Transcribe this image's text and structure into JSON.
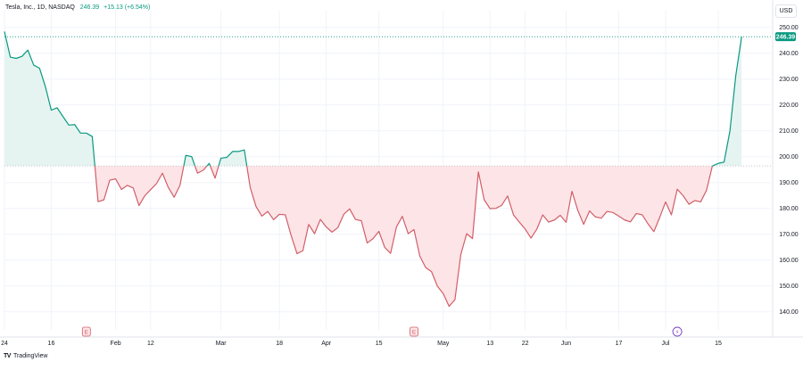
{
  "header": {
    "symbol": "Tesla, Inc., 1D, NASDAQ",
    "last_price": "246.39",
    "change": "+15.13 (+6.54%)"
  },
  "currency_button": "USD",
  "branding": {
    "logo": "TV",
    "name": "TradingView"
  },
  "colors": {
    "up": "#089981",
    "down": "#d15e69",
    "up_fill": "#e6f4f1",
    "down_fill": "#fde4e6",
    "grid": "#f0f3fa",
    "axis_text": "#131722"
  },
  "chart_data": {
    "type": "area",
    "title": "Tesla, Inc., 1D, NASDAQ",
    "baseline": 196.4,
    "last_value": 246.39,
    "last_value_label": "246.39",
    "ylim": [
      133,
      253
    ],
    "y_ticks": [
      140,
      150,
      160,
      170,
      180,
      190,
      200,
      210,
      220,
      230,
      240,
      250
    ],
    "y_tick_labels": [
      "140.00",
      "150.00",
      "160.00",
      "170.00",
      "180.00",
      "190.00",
      "200.00",
      "210.00",
      "220.00",
      "230.00",
      "240.00",
      "250.00"
    ],
    "x_range": [
      0,
      131
    ],
    "x_ticks": [
      {
        "i": 0,
        "label": "24"
      },
      {
        "i": 8,
        "label": "16"
      },
      {
        "i": 19,
        "label": "Feb"
      },
      {
        "i": 25,
        "label": "12"
      },
      {
        "i": 37,
        "label": "Mar"
      },
      {
        "i": 47,
        "label": "18"
      },
      {
        "i": 55,
        "label": "Apr"
      },
      {
        "i": 64,
        "label": "15"
      },
      {
        "i": 75,
        "label": "May"
      },
      {
        "i": 83,
        "label": "13"
      },
      {
        "i": 89,
        "label": "22"
      },
      {
        "i": 96,
        "label": "Jun"
      },
      {
        "i": 105,
        "label": "17"
      },
      {
        "i": 113,
        "label": "Jul"
      },
      {
        "i": 122,
        "label": "15"
      }
    ],
    "events": [
      {
        "i": 14,
        "label": "E"
      },
      {
        "i": 70,
        "label": "E"
      },
      {
        "i": 115,
        "label": "⚡"
      }
    ],
    "values": [
      248.4,
      238.5,
      238.0,
      238.8,
      241.2,
      235.4,
      234.2,
      227.0,
      218.0,
      218.9,
      215.5,
      212.2,
      212.4,
      209.1,
      209.1,
      207.8,
      182.6,
      183.3,
      190.9,
      191.4,
      187.3,
      188.9,
      187.9,
      181.1,
      184.9,
      187.3,
      189.6,
      193.6,
      188.1,
      184.3,
      188.9,
      200.5,
      200.0,
      193.6,
      194.8,
      197.4,
      191.7,
      199.4,
      199.7,
      202.0,
      202.0,
      202.6,
      188.1,
      180.7,
      177.0,
      178.8,
      175.6,
      177.7,
      177.5,
      169.5,
      162.5,
      163.6,
      173.8,
      170.2,
      175.7,
      172.8,
      170.8,
      172.6,
      177.7,
      179.8,
      175.7,
      175.2,
      166.6,
      168.3,
      171.1,
      164.9,
      162.6,
      172.8,
      176.9,
      170.2,
      171.8,
      161.5,
      157.1,
      155.5,
      149.9,
      147.0,
      142.1,
      144.7,
      162.1,
      170.2,
      168.3,
      194.1,
      183.3,
      179.9,
      180.0,
      181.2,
      184.8,
      177.5,
      174.7,
      172.0,
      168.5,
      172.0,
      177.5,
      174.7,
      175.5,
      177.3,
      174.6,
      186.6,
      179.2,
      173.8,
      179.0,
      176.7,
      176.2,
      178.8,
      178.4,
      177.0,
      175.5,
      174.8,
      178.0,
      177.5,
      174.0,
      171.0,
      176.5,
      182.5,
      177.5,
      187.4,
      184.9,
      181.6,
      183.0,
      182.5,
      187.0,
      196.4,
      197.4,
      197.9,
      209.9,
      231.3,
      246.4
    ]
  }
}
